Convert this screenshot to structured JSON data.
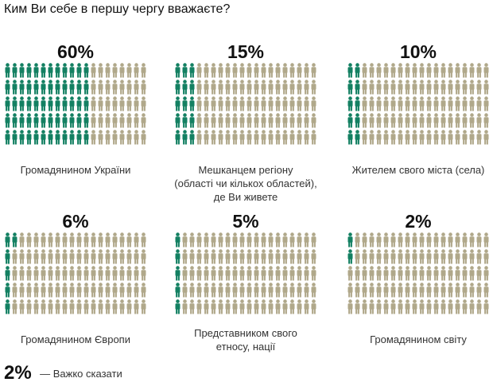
{
  "chart_data": {
    "type": "pictogram",
    "title": "Ким Ви себе в першу чергу вважаєте?",
    "unit": "%",
    "total_icons": 100,
    "grid": {
      "columns": 20,
      "rows": 5
    },
    "colors": {
      "highlight": "#138062",
      "rest": "#b0a88a"
    },
    "items": [
      {
        "value": 60,
        "label": "60%",
        "caption": [
          "Громадянином України"
        ]
      },
      {
        "value": 15,
        "label": "15%",
        "caption": [
          "Мешканцем регіону",
          "(області чи кількох областей),",
          "де Ви живете"
        ]
      },
      {
        "value": 10,
        "label": "10%",
        "caption": [
          "Жителем свого міста (села)"
        ]
      },
      {
        "value": 6,
        "label": "6%",
        "caption": [
          "Громадянином Європи"
        ]
      },
      {
        "value": 5,
        "label": "5%",
        "caption": [
          "Представником свого",
          "етносу, нації"
        ]
      },
      {
        "value": 2,
        "label": "2%",
        "caption": [
          "Громадянином світу"
        ]
      }
    ],
    "footer": {
      "value": 2,
      "label": "2%",
      "caption": "— Важко сказати"
    }
  }
}
